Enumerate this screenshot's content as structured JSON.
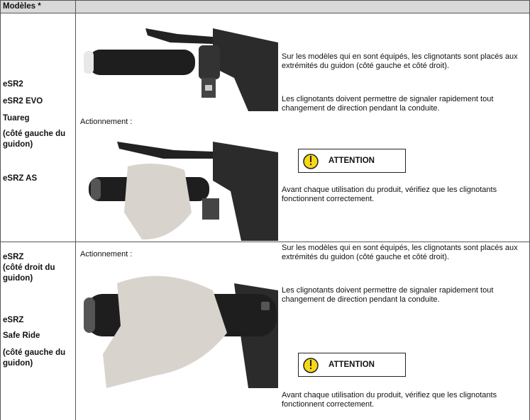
{
  "header": {
    "title": "Modèles *"
  },
  "rows": [
    {
      "models": [
        "eSR2",
        "eSR2 EVO",
        "Tuareg",
        "(côté gauche du guidon)",
        "eSRZ AS"
      ],
      "action_label": "Actionnement :",
      "paragraphs": [
        "Sur les modèles qui en sont équipés, les clignotants sont placés aux extrémités du guidon (côté gauche et côté droit).",
        "Les clignotants doivent permettre de signaler rapidement tout changement de direction pendant la conduite."
      ],
      "attention": "ATTENTION",
      "warning": "Avant chaque utilisation du produit, vérifiez que les clignotants fonctionnent correctement."
    },
    {
      "models": [
        "eSRZ",
        "(côté droit du guidon)",
        "eSRZ",
        "Safe Ride",
        "(côté gauche du guidon)"
      ],
      "action_label": "Actionnement :",
      "paragraphs": [
        "Sur les modèles qui en sont équipés, les clignotants sont placés aux extrémités du guidon (côté gauche et côté droit).",
        "Les clignotants doivent permettre de signaler rapidement tout changement de direction pendant la conduite."
      ],
      "attention": "ATTENTION",
      "warning": "Avant chaque utilisation du produit, vérifiez que les clignotants fonctionnent correctement."
    }
  ]
}
